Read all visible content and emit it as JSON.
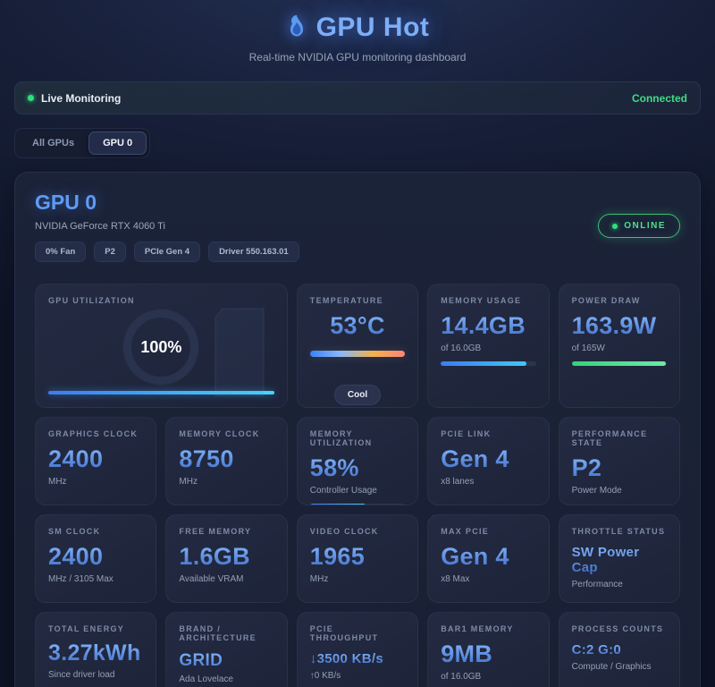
{
  "header": {
    "title": "GPU Hot",
    "subtitle": "Real-time NVIDIA GPU monitoring dashboard"
  },
  "status_bar": {
    "live_label": "Live Monitoring",
    "connection_status": "Connected"
  },
  "tabs": [
    {
      "label": "All GPUs",
      "active": false
    },
    {
      "label": "GPU 0",
      "active": true
    }
  ],
  "gpu": {
    "name": "GPU 0",
    "model": "NVIDIA GeForce RTX 4060 Ti",
    "chips": [
      "0% Fan",
      "P2",
      "PCIe Gen 4",
      "Driver 550.163.01"
    ],
    "online_badge": "ONLINE"
  },
  "metrics": {
    "gpu_utilization": {
      "label": "GPU UTILIZATION",
      "value": "100%",
      "percent": 100
    },
    "temperature": {
      "label": "TEMPERATURE",
      "value": "53°C",
      "badge": "Cool"
    },
    "memory_usage": {
      "label": "MEMORY USAGE",
      "value": "14.4GB",
      "sub": "of 16.0GB",
      "percent": 90
    },
    "power_draw": {
      "label": "POWER DRAW",
      "value": "163.9W",
      "sub": "of 165W",
      "percent": 99
    },
    "graphics_clock": {
      "label": "GRAPHICS CLOCK",
      "value": "2400",
      "sub": "MHz"
    },
    "memory_clock": {
      "label": "MEMORY CLOCK",
      "value": "8750",
      "sub": "MHz"
    },
    "memory_utilization": {
      "label": "MEMORY UTILIZATION",
      "value": "58%",
      "sub": "Controller Usage",
      "percent": 58
    },
    "pcie_link": {
      "label": "PCIE LINK",
      "value": "Gen 4",
      "sub": "x8 lanes"
    },
    "performance_state": {
      "label": "PERFORMANCE STATE",
      "value": "P2",
      "sub": "Power Mode"
    },
    "sm_clock": {
      "label": "SM CLOCK",
      "value": "2400",
      "sub": "MHz / 3105 Max"
    },
    "free_memory": {
      "label": "FREE MEMORY",
      "value": "1.6GB",
      "sub": "Available VRAM"
    },
    "video_clock": {
      "label": "VIDEO CLOCK",
      "value": "1965",
      "sub": "MHz"
    },
    "max_pcie": {
      "label": "MAX PCIE",
      "value": "Gen 4",
      "sub": "x8 Max"
    },
    "throttle_status": {
      "label": "THROTTLE STATUS",
      "value": "SW Power Cap",
      "sub": "Performance"
    },
    "total_energy": {
      "label": "TOTAL ENERGY",
      "value": "3.27kWh",
      "sub": "Since driver load"
    },
    "brand_architecture": {
      "label": "BRAND / ARCHITECTURE",
      "value": "GRID",
      "sub": "Ada Lovelace"
    },
    "pcie_throughput": {
      "label": "PCIE THROUGHPUT",
      "value": "↓3500 KB/s",
      "sub": "↑0 KB/s"
    },
    "bar1_memory": {
      "label": "BAR1 MEMORY",
      "value": "9MB",
      "sub": "of 16.0GB"
    },
    "process_counts": {
      "label": "PROCESS COUNTS",
      "value": "C:2 G:0",
      "sub": "Compute / Graphics"
    }
  },
  "colors": {
    "accent_blue": "#5f9bf3",
    "status_green": "#3fdc82",
    "bar_cyan": "#3fc8f5",
    "bar_green": "#4ade80",
    "temp_gradient": [
      "#3b82f6",
      "#f3b24c",
      "#fb8577"
    ]
  }
}
